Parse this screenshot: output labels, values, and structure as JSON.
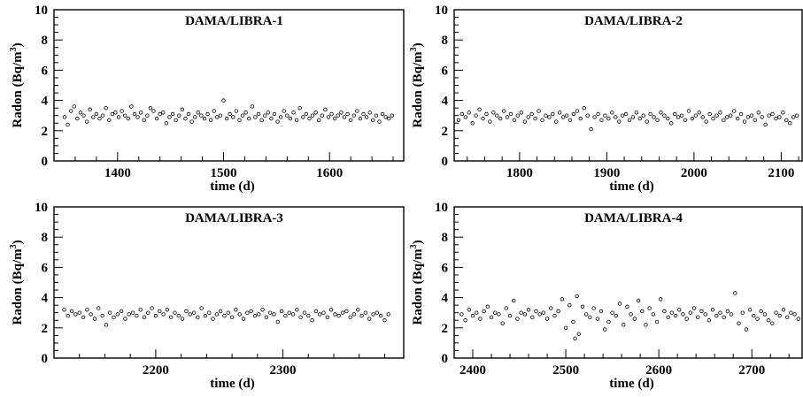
{
  "chart_data": [
    {
      "type": "scatter",
      "title": "DAMA/LIBRA-1",
      "xlabel": "time (d)",
      "ylabel": "Radon (Bq/m3)",
      "ylabel_parts": {
        "main": "Radon (Bq/m",
        "sup": "3",
        "end": ")"
      },
      "xlim": [
        1340,
        1670
      ],
      "ylim": [
        0,
        10
      ],
      "xticks": [
        1400,
        1500,
        1600
      ],
      "yticks": [
        0,
        2,
        4,
        6,
        8,
        10
      ],
      "x": [
        1350,
        1353,
        1356,
        1359,
        1362,
        1365,
        1368,
        1371,
        1374,
        1377,
        1380,
        1383,
        1386,
        1389,
        1392,
        1395,
        1398,
        1401,
        1404,
        1407,
        1410,
        1413,
        1416,
        1419,
        1422,
        1425,
        1428,
        1431,
        1434,
        1437,
        1440,
        1443,
        1446,
        1449,
        1452,
        1455,
        1458,
        1461,
        1464,
        1467,
        1470,
        1473,
        1476,
        1479,
        1482,
        1485,
        1488,
        1491,
        1494,
        1497,
        1500,
        1503,
        1506,
        1509,
        1512,
        1515,
        1518,
        1521,
        1524,
        1527,
        1530,
        1533,
        1536,
        1539,
        1542,
        1545,
        1548,
        1551,
        1554,
        1557,
        1560,
        1563,
        1566,
        1569,
        1572,
        1575,
        1578,
        1581,
        1584,
        1587,
        1590,
        1593,
        1596,
        1599,
        1602,
        1605,
        1608,
        1611,
        1614,
        1617,
        1620,
        1623,
        1626,
        1629,
        1632,
        1635,
        1638,
        1641,
        1644,
        1647,
        1650,
        1653,
        1656,
        1659
      ],
      "y": [
        2.9,
        2.4,
        3.3,
        3.6,
        2.8,
        3.2,
        3.0,
        2.6,
        3.4,
        2.9,
        3.1,
        2.8,
        3.0,
        3.5,
        2.7,
        3.1,
        3.2,
        2.9,
        3.3,
        3.0,
        2.8,
        3.6,
        3.1,
        2.9,
        3.2,
        2.7,
        3.0,
        3.5,
        3.3,
        2.8,
        3.1,
        3.2,
        2.5,
        2.9,
        3.1,
        2.7,
        3.0,
        3.4,
        2.8,
        3.1,
        2.6,
        2.9,
        3.2,
        3.0,
        2.8,
        3.1,
        2.7,
        3.3,
        2.9,
        3.0,
        4.0,
        2.8,
        3.1,
        2.9,
        3.3,
        2.7,
        3.0,
        3.2,
        2.8,
        3.6,
        2.9,
        3.1,
        2.7,
        3.0,
        3.2,
        2.8,
        3.1,
        2.6,
        2.9,
        3.3,
        3.0,
        2.8,
        3.2,
        2.7,
        3.5,
        2.9,
        3.1,
        2.8,
        3.0,
        3.2,
        2.7,
        3.0,
        3.4,
        2.9,
        3.1,
        2.8,
        3.0,
        3.2,
        2.9,
        3.1,
        2.7,
        3.0,
        3.3,
        2.8,
        3.1,
        2.9,
        3.2,
        2.7,
        3.0,
        2.6,
        3.1,
        2.9,
        2.8,
        3.0
      ]
    },
    {
      "type": "scatter",
      "title": "DAMA/LIBRA-2",
      "xlabel": "time (d)",
      "ylabel": "Radon (Bq/m3)",
      "ylabel_parts": {
        "main": "Radon (Bq/m",
        "sup": "3",
        "end": ")"
      },
      "xlim": [
        1725,
        2125
      ],
      "ylim": [
        0,
        10
      ],
      "xticks": [
        1800,
        1900,
        2000,
        2100
      ],
      "yticks": [
        0,
        2,
        4,
        6,
        8,
        10
      ],
      "x": [
        1730,
        1734,
        1738,
        1742,
        1746,
        1750,
        1754,
        1758,
        1762,
        1766,
        1770,
        1774,
        1778,
        1782,
        1786,
        1790,
        1794,
        1798,
        1802,
        1806,
        1810,
        1814,
        1818,
        1822,
        1826,
        1830,
        1834,
        1838,
        1842,
        1846,
        1850,
        1854,
        1858,
        1862,
        1866,
        1870,
        1874,
        1878,
        1882,
        1886,
        1890,
        1894,
        1898,
        1902,
        1906,
        1910,
        1914,
        1918,
        1922,
        1926,
        1930,
        1934,
        1938,
        1942,
        1946,
        1950,
        1954,
        1958,
        1962,
        1966,
        1970,
        1974,
        1978,
        1982,
        1986,
        1990,
        1994,
        1998,
        2002,
        2006,
        2010,
        2014,
        2018,
        2022,
        2026,
        2030,
        2034,
        2038,
        2042,
        2046,
        2050,
        2054,
        2058,
        2062,
        2066,
        2070,
        2074,
        2078,
        2082,
        2086,
        2090,
        2094,
        2098,
        2102,
        2106,
        2110,
        2114,
        2118,
        2122
      ],
      "y": [
        2.7,
        3.1,
        2.9,
        3.2,
        2.5,
        3.0,
        3.4,
        2.8,
        3.1,
        2.6,
        3.2,
        3.0,
        2.8,
        3.3,
        2.9,
        3.1,
        2.7,
        3.0,
        3.2,
        2.6,
        2.9,
        3.1,
        2.8,
        3.3,
        2.7,
        3.0,
        2.9,
        3.1,
        2.6,
        3.2,
        2.9,
        3.0,
        2.7,
        3.1,
        3.3,
        2.8,
        3.5,
        3.0,
        2.1,
        2.9,
        3.1,
        2.7,
        3.0,
        2.8,
        3.2,
        2.9,
        2.6,
        3.0,
        3.1,
        2.7,
        2.9,
        3.2,
        2.8,
        3.0,
        2.6,
        3.1,
        2.9,
        2.7,
        3.2,
        3.0,
        2.8,
        2.5,
        3.1,
        2.9,
        3.0,
        2.7,
        3.3,
        2.8,
        3.0,
        3.2,
        2.9,
        2.6,
        3.1,
        2.8,
        3.0,
        3.2,
        2.7,
        2.9,
        3.0,
        3.3,
        2.8,
        3.1,
        2.6,
        2.9,
        3.0,
        2.7,
        3.2,
        2.9,
        2.4,
        3.0,
        3.1,
        2.8,
        2.9,
        3.2,
        2.7,
        2.5,
        2.9,
        3.0,
        3.2
      ]
    },
    {
      "type": "scatter",
      "title": "DAMA/LIBRA-3",
      "xlabel": "time (d)",
      "ylabel": "Radon (Bq/m3)",
      "ylabel_parts": {
        "main": "Radon (Bq/m",
        "sup": "3",
        "end": ")"
      },
      "xlim": [
        2120,
        2395
      ],
      "ylim": [
        0,
        10
      ],
      "xticks": [
        2200,
        2300
      ],
      "yticks": [
        0,
        2,
        4,
        6,
        8,
        10
      ],
      "x": [
        2128,
        2131,
        2134,
        2137,
        2140,
        2143,
        2146,
        2149,
        2152,
        2155,
        2158,
        2161,
        2164,
        2167,
        2170,
        2173,
        2176,
        2179,
        2182,
        2185,
        2188,
        2191,
        2194,
        2197,
        2200,
        2203,
        2206,
        2209,
        2212,
        2215,
        2218,
        2221,
        2224,
        2227,
        2230,
        2233,
        2236,
        2239,
        2242,
        2245,
        2248,
        2251,
        2254,
        2257,
        2260,
        2263,
        2266,
        2269,
        2272,
        2275,
        2278,
        2281,
        2284,
        2287,
        2290,
        2293,
        2296,
        2299,
        2302,
        2305,
        2308,
        2311,
        2314,
        2317,
        2320,
        2323,
        2326,
        2329,
        2332,
        2335,
        2338,
        2341,
        2344,
        2347,
        2350,
        2353,
        2356,
        2359,
        2362,
        2365,
        2368,
        2371,
        2374,
        2377,
        2380,
        2383
      ],
      "y": [
        3.2,
        2.8,
        3.1,
        2.9,
        3.0,
        2.7,
        3.2,
        2.9,
        2.6,
        3.3,
        2.8,
        2.2,
        3.0,
        2.7,
        2.9,
        3.1,
        2.6,
        2.9,
        3.0,
        2.8,
        3.2,
        2.7,
        3.0,
        3.3,
        2.8,
        3.1,
        2.9,
        3.2,
        2.7,
        3.0,
        2.8,
        2.6,
        3.1,
        2.9,
        3.0,
        2.7,
        3.3,
        2.8,
        3.0,
        2.6,
        2.9,
        3.1,
        2.8,
        3.0,
        2.7,
        3.2,
        2.9,
        2.6,
        3.0,
        3.1,
        2.8,
        2.9,
        3.2,
        2.7,
        3.0,
        2.9,
        2.4,
        3.1,
        2.8,
        3.0,
        2.9,
        3.2,
        2.7,
        3.0,
        2.8,
        2.5,
        3.1,
        2.9,
        3.0,
        2.7,
        3.2,
        2.9,
        2.8,
        3.0,
        3.1,
        2.7,
        2.9,
        3.2,
        2.8,
        3.0,
        2.6,
        2.9,
        3.0,
        2.8,
        2.5,
        2.9
      ]
    },
    {
      "type": "scatter",
      "title": "DAMA/LIBRA-4",
      "xlabel": "time (d)",
      "ylabel": "Radon (Bq/m3)",
      "ylabel_parts": {
        "main": "Radon (Bq/m",
        "sup": "3",
        "end": ")"
      },
      "xlim": [
        2380,
        2755
      ],
      "ylim": [
        0,
        10
      ],
      "xticks": [
        2400,
        2500,
        2600,
        2700
      ],
      "yticks": [
        0,
        2,
        4,
        6,
        8,
        10
      ],
      "x": [
        2388,
        2392,
        2396,
        2400,
        2404,
        2408,
        2412,
        2416,
        2420,
        2424,
        2428,
        2432,
        2436,
        2440,
        2444,
        2448,
        2452,
        2456,
        2460,
        2464,
        2468,
        2472,
        2476,
        2480,
        2484,
        2488,
        2492,
        2496,
        2500,
        2504,
        2508,
        2510,
        2512,
        2514,
        2518,
        2522,
        2526,
        2530,
        2534,
        2538,
        2542,
        2546,
        2550,
        2554,
        2558,
        2562,
        2566,
        2570,
        2574,
        2578,
        2582,
        2586,
        2590,
        2594,
        2598,
        2602,
        2606,
        2610,
        2614,
        2618,
        2622,
        2626,
        2630,
        2634,
        2638,
        2642,
        2646,
        2650,
        2654,
        2658,
        2662,
        2666,
        2670,
        2674,
        2678,
        2682,
        2686,
        2690,
        2694,
        2698,
        2702,
        2706,
        2710,
        2714,
        2718,
        2722,
        2726,
        2730,
        2734,
        2738,
        2742,
        2746,
        2750
      ],
      "y": [
        2.9,
        2.5,
        3.2,
        2.8,
        3.0,
        2.6,
        3.1,
        3.4,
        2.7,
        3.0,
        2.9,
        2.3,
        3.3,
        2.8,
        3.8,
        2.6,
        3.0,
        2.9,
        3.2,
        2.7,
        3.1,
        2.9,
        3.0,
        2.6,
        3.3,
        2.8,
        3.1,
        3.9,
        2.0,
        3.5,
        2.4,
        1.3,
        4.1,
        1.6,
        3.4,
        2.9,
        2.7,
        3.3,
        2.6,
        3.1,
        1.9,
        2.4,
        3.0,
        2.8,
        3.6,
        2.2,
        3.4,
        2.9,
        2.6,
        3.8,
        3.1,
        2.2,
        3.3,
        2.9,
        2.4,
        3.9,
        3.1,
        2.7,
        3.0,
        2.8,
        3.2,
        2.9,
        2.6,
        3.0,
        3.3,
        2.7,
        3.1,
        2.9,
        2.5,
        3.2,
        2.8,
        3.0,
        2.7,
        3.1,
        2.9,
        4.3,
        2.3,
        3.0,
        1.9,
        3.2,
        2.8,
        2.6,
        3.1,
        2.9,
        2.5,
        2.3,
        3.0,
        2.8,
        3.2,
        2.7,
        3.0,
        2.9,
        2.6
      ]
    }
  ]
}
